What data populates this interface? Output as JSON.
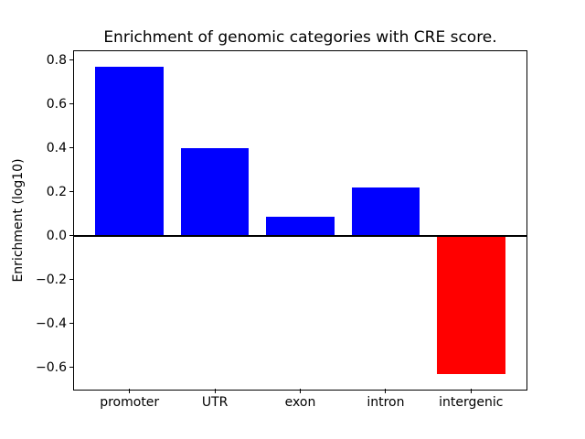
{
  "chart_data": {
    "type": "bar",
    "title": "Enrichment of genomic categories with CRE score.",
    "ylabel": "Enrichment (log10)",
    "xlabel": "",
    "categories": [
      "promoter",
      "UTR",
      "exon",
      "intron",
      "intergenic"
    ],
    "values": [
      0.77,
      0.4,
      0.085,
      0.22,
      -0.63
    ],
    "bar_colors": [
      "#0000ff",
      "#0000ff",
      "#0000ff",
      "#0000ff",
      "#ff0000"
    ],
    "bar_width": 0.8,
    "xlim": [
      -0.65,
      4.65
    ],
    "ylim": [
      -0.7,
      0.84
    ],
    "yticks": [
      0.8,
      0.6,
      0.4,
      0.2,
      0.0,
      -0.2,
      -0.4,
      -0.6
    ],
    "ytick_labels": [
      "0.8",
      "0.6",
      "0.4",
      "0.2",
      "0.0",
      "−0.2",
      "−0.4",
      "−0.6"
    ],
    "zero_line": true,
    "zero_line_color": "#000000",
    "zero_line_width": 2,
    "grid": false,
    "legend": false,
    "axis_color": "#000000",
    "background_color": "#ffffff"
  }
}
